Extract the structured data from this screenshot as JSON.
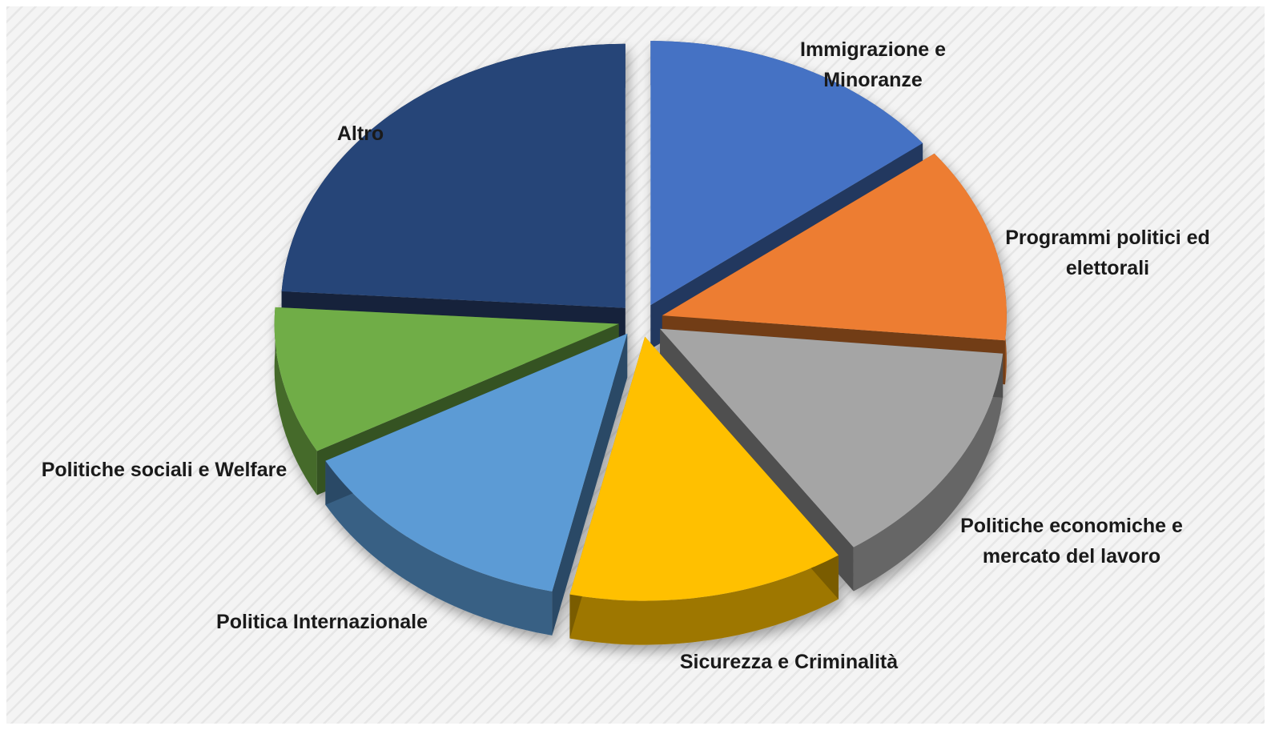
{
  "chart_data": {
    "type": "pie",
    "style": "3d-exploded",
    "title": "",
    "slices": [
      {
        "label": "Immigrazione e Minoranze",
        "value": 14.5,
        "color": "#4472C4"
      },
      {
        "label": "Programmi politici ed elettorali",
        "value": 12.0,
        "color": "#ED7D31"
      },
      {
        "label": "Politiche economiche e mercato del lavoro",
        "value": 14.0,
        "color": "#A5A5A5"
      },
      {
        "label": "Sicurezza e Criminalità",
        "value": 13.0,
        "color": "#FFC000"
      },
      {
        "label": "Politica Internazionale",
        "value": 13.5,
        "color": "#5B9BD5"
      },
      {
        "label": "Politiche sociali e Welfare",
        "value": 9.0,
        "color": "#70AD47"
      },
      {
        "label": "Altro",
        "value": 24.0,
        "color": "#264478"
      }
    ]
  }
}
